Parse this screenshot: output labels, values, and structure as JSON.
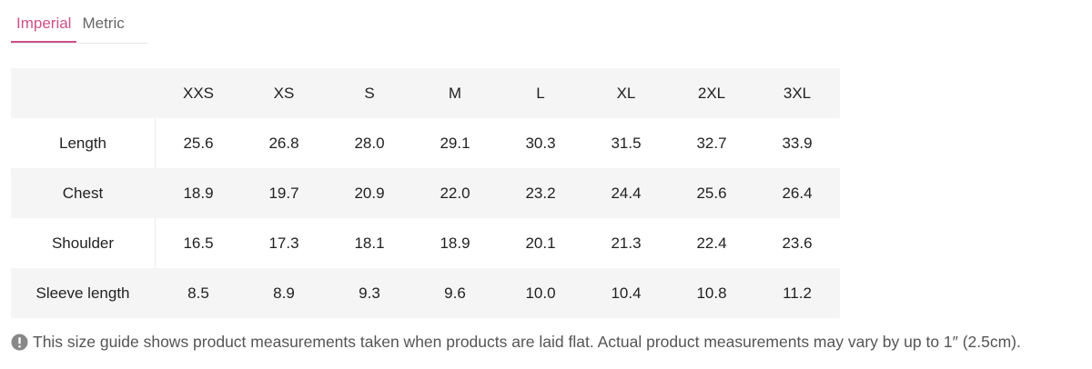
{
  "tabs": [
    "Imperial",
    "Metric"
  ],
  "table": {
    "header": [
      "XXS",
      "XS",
      "S",
      "M",
      "L",
      "XL",
      "2XL",
      "3XL"
    ],
    "rows": [
      [
        "Length",
        "25.6",
        "26.8",
        "28.0",
        "29.1",
        "30.3",
        "31.5",
        "32.7",
        "33.9"
      ],
      [
        "Chest",
        "18.9",
        "19.7",
        "20.9",
        "22.0",
        "23.2",
        "24.4",
        "25.6",
        "26.4"
      ],
      [
        "Shoulder",
        "16.5",
        "17.3",
        "18.1",
        "18.9",
        "20.1",
        "21.3",
        "22.4",
        "23.6"
      ],
      [
        "Sleeve length",
        "8.5",
        "8.9",
        "9.3",
        "9.6",
        "10.0",
        "10.4",
        "10.8",
        "11.2"
      ]
    ]
  },
  "note": "This size guide shows product measurements taken when products are laid flat. Actual product measurements may vary by up to 1″ (2.5cm)."
}
